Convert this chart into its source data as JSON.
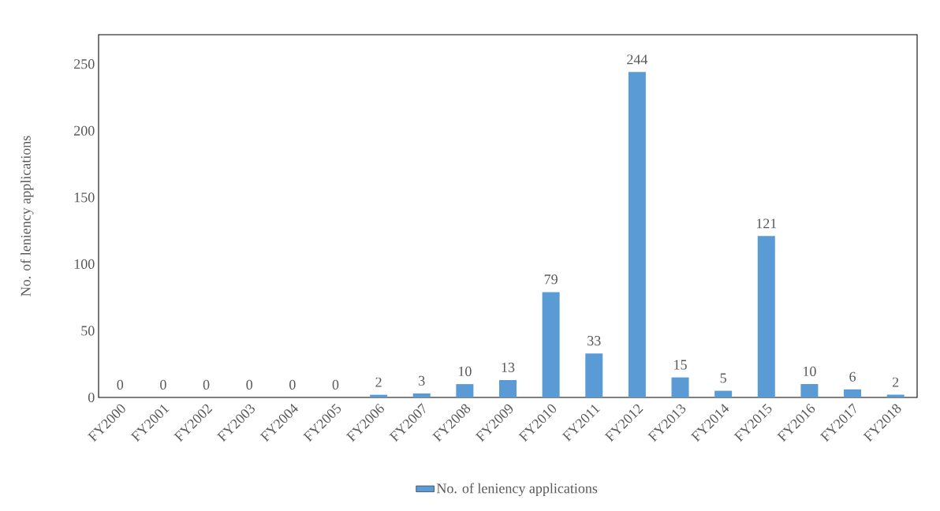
{
  "chart_data": {
    "type": "bar",
    "ylabel": "No. of leniency applications",
    "categories": [
      "FY2000",
      "FY2001",
      "FY2002",
      "FY2003",
      "FY2004",
      "FY2005",
      "FY2006",
      "FY2007",
      "FY2008",
      "FY2009",
      "FY2010",
      "FY2011",
      "FY2012",
      "FY2013",
      "FY2014",
      "FY2015",
      "FY2016",
      "FY2017",
      "FY2018"
    ],
    "series": [
      {
        "name": "No. of leniency applications",
        "color": "#5b9bd5",
        "values": [
          0,
          0,
          0,
          0,
          0,
          0,
          2,
          3,
          10,
          13,
          79,
          33,
          244,
          15,
          5,
          121,
          10,
          6,
          2
        ]
      }
    ],
    "ylim": [
      0,
      272
    ],
    "yticks": [
      0,
      50,
      100,
      150,
      200,
      250
    ],
    "grid": false,
    "legend": "bottom",
    "data_labels": true
  }
}
